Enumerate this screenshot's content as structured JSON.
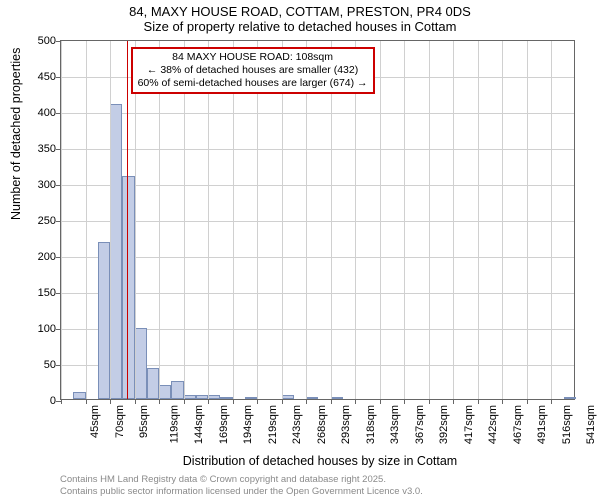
{
  "title": {
    "line1": "84, MAXY HOUSE ROAD, COTTAM, PRESTON, PR4 0DS",
    "line2": "Size of property relative to detached houses in Cottam"
  },
  "axes": {
    "y_label": "Number of detached properties",
    "x_label": "Distribution of detached houses by size in Cottam",
    "y_min": 0,
    "y_max": 500,
    "y_tick_step": 50
  },
  "x_ticks": [
    "45sqm",
    "70sqm",
    "95sqm",
    "119sqm",
    "144sqm",
    "169sqm",
    "194sqm",
    "219sqm",
    "243sqm",
    "268sqm",
    "293sqm",
    "318sqm",
    "343sqm",
    "367sqm",
    "392sqm",
    "417sqm",
    "442sqm",
    "467sqm",
    "491sqm",
    "516sqm",
    "541sqm"
  ],
  "histogram": {
    "type": "histogram",
    "bar_fill": "#c3cde6",
    "bar_border": "#7a8fb8",
    "grid_color": "#d0d0d0",
    "background_color": "#ffffff",
    "values": [
      0,
      10,
      0,
      218,
      410,
      310,
      98,
      43,
      20,
      25,
      5,
      5,
      5,
      3,
      0,
      3,
      0,
      0,
      5,
      0,
      3,
      0,
      3,
      0,
      0,
      0,
      0,
      0,
      0,
      0,
      0,
      0,
      0,
      0,
      0,
      0,
      0,
      0,
      0,
      0,
      0,
      2
    ]
  },
  "marker": {
    "color": "#cc0000",
    "bin_index": 5,
    "annotation": {
      "line1": "84 MAXY HOUSE ROAD: 108sqm",
      "line2": "← 38% of detached houses are smaller (432)",
      "line3": "60% of semi-detached houses are larger (674) →"
    }
  },
  "footer": {
    "line1": "Contains HM Land Registry data © Crown copyright and database right 2025.",
    "line2": "Contains public sector information licensed under the Open Government Licence v3.0."
  },
  "styling": {
    "title_fontsize": 13,
    "label_fontsize": 12.5,
    "tick_fontsize": 11,
    "annotation_fontsize": 10.5,
    "footer_fontsize": 9.5,
    "footer_color": "#8a8a8a",
    "axis_color": "#666666"
  }
}
